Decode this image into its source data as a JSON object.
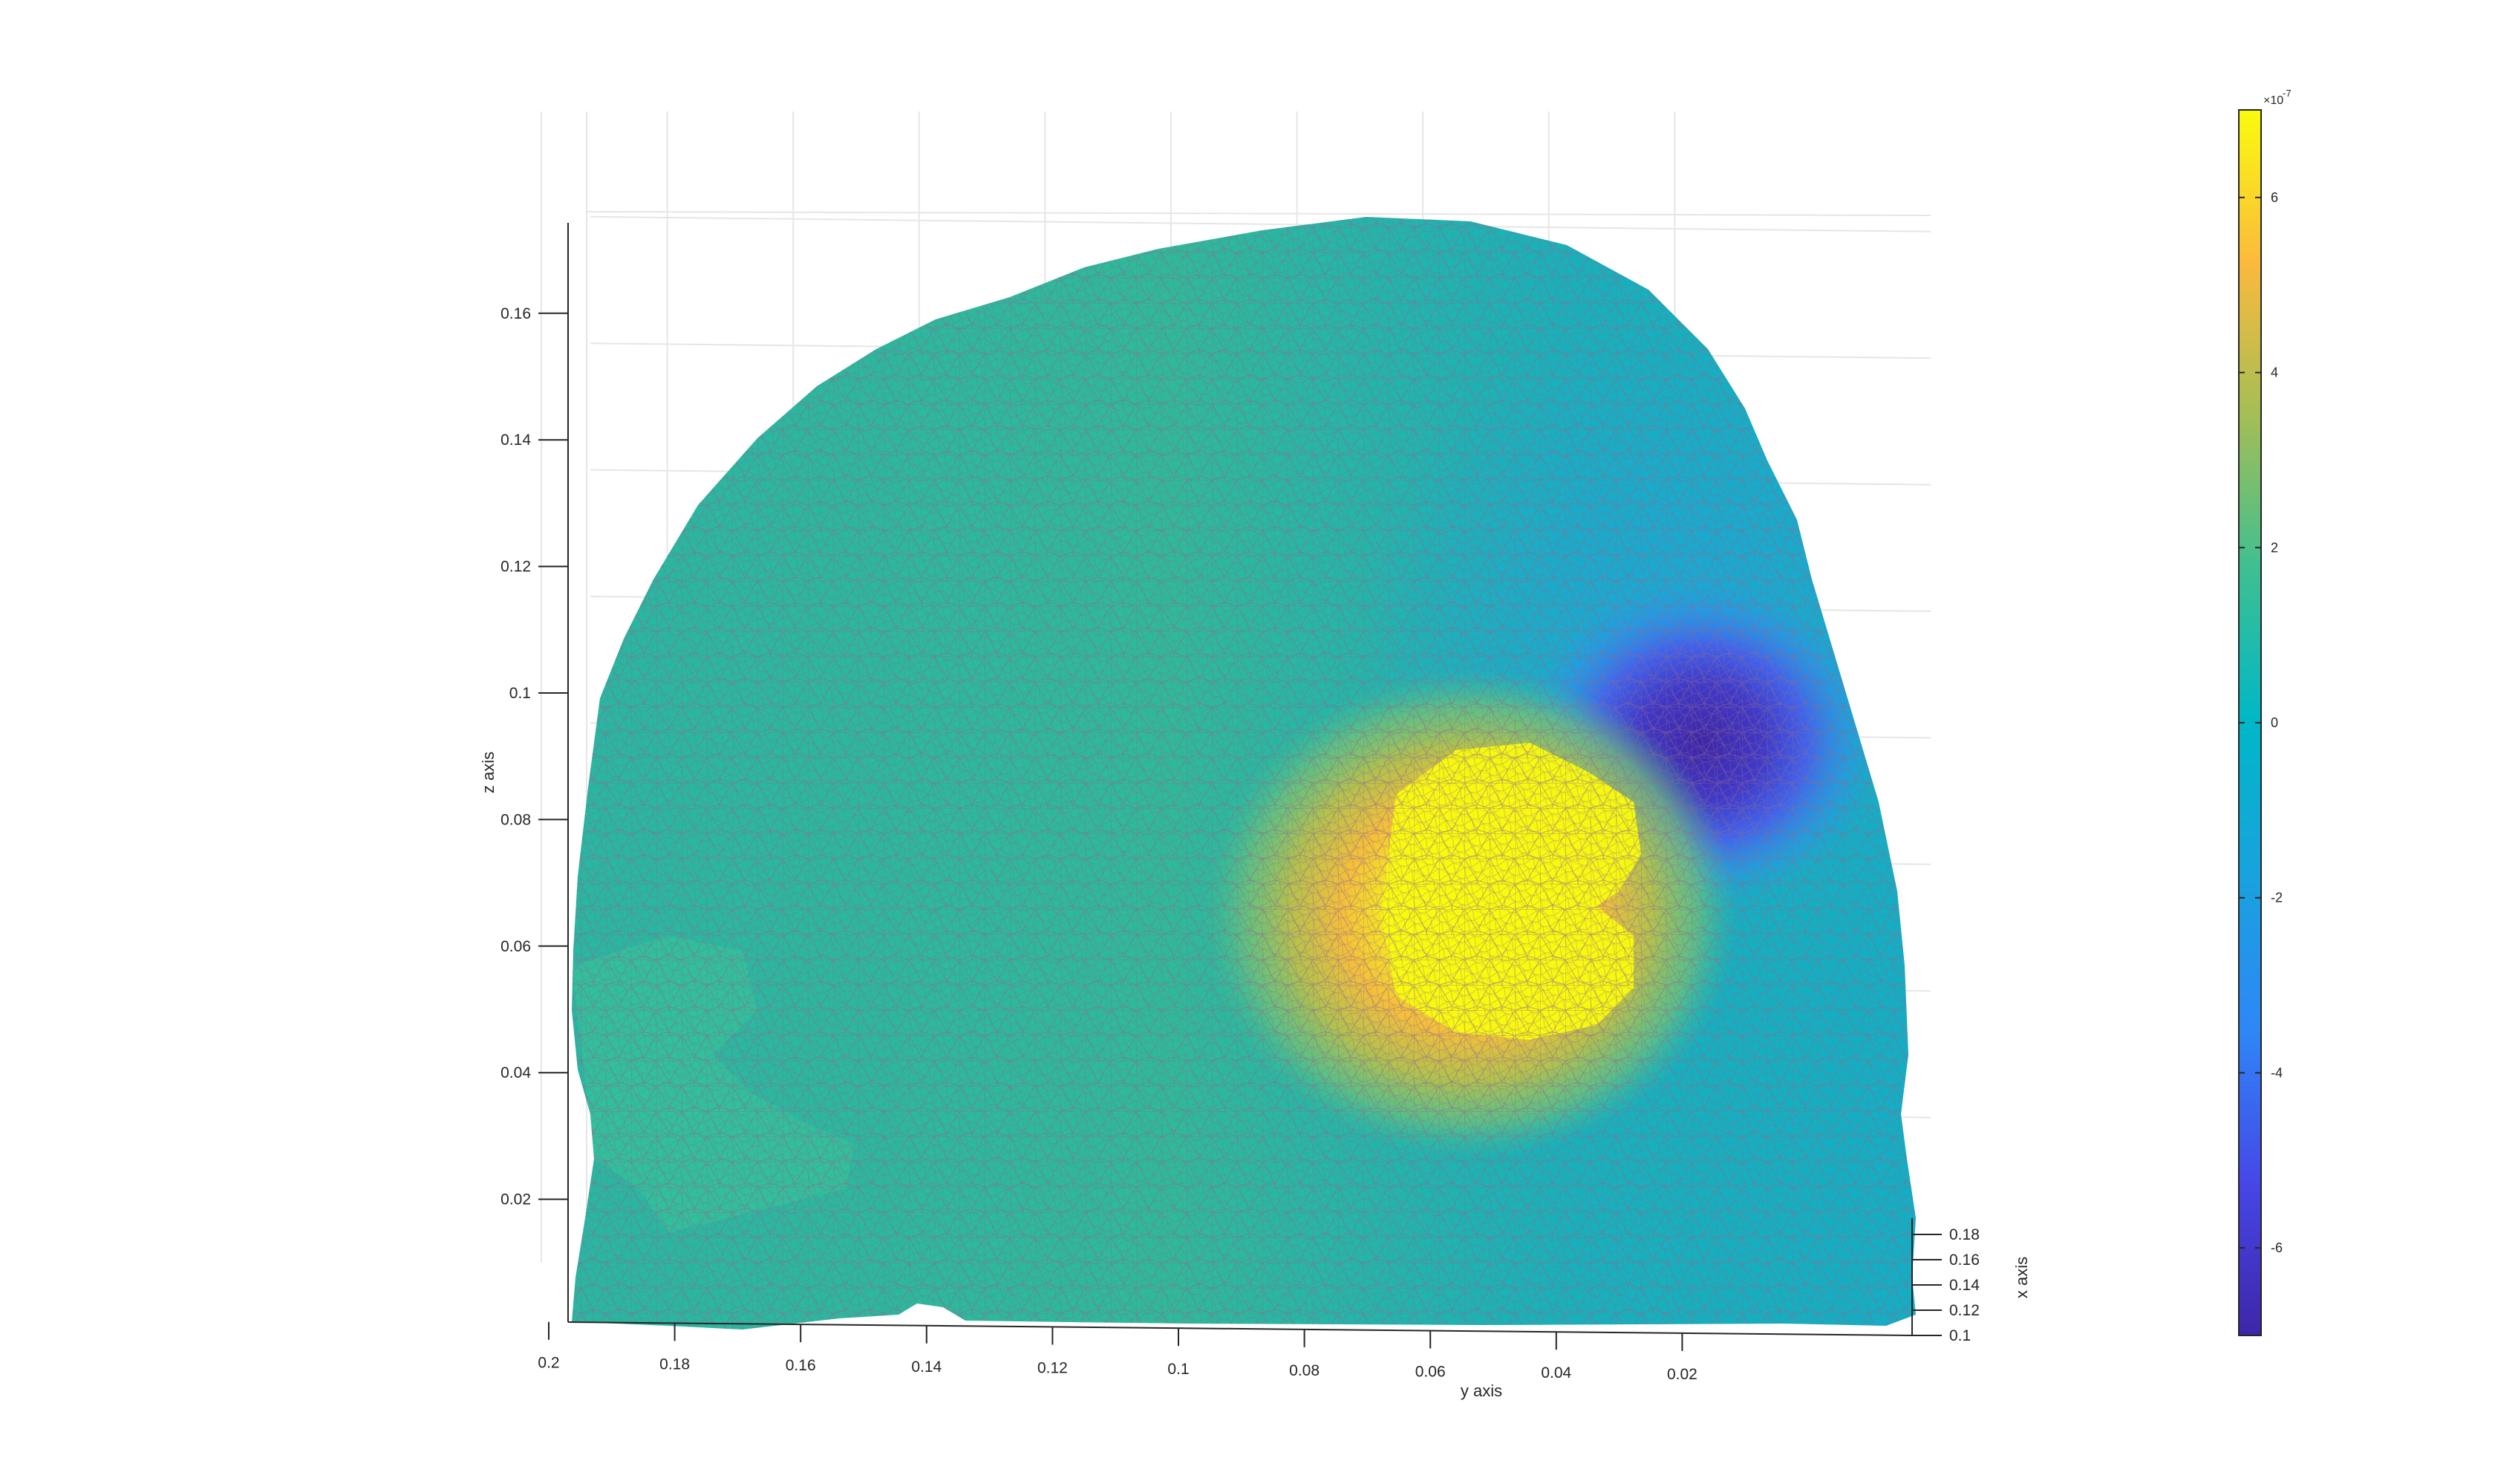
{
  "chart_data": {
    "type": "surface",
    "title": "",
    "xlabel": "x axis",
    "ylabel": "y axis",
    "zlabel": "z axis",
    "view": "3-D mesh viewed from side; y axis decreasing left to right",
    "grid": true,
    "ylim": [
      0.0,
      0.22
    ],
    "zlim": [
      0.0,
      0.175
    ],
    "xlim": [
      0.1,
      0.18
    ],
    "y_ticks": [
      "0.2",
      "0.18",
      "0.16",
      "0.14",
      "0.12",
      "0.1",
      "0.08",
      "0.06",
      "0.04",
      "0.02"
    ],
    "z_ticks": [
      "0.02",
      "0.04",
      "0.06",
      "0.08",
      "0.1",
      "0.12",
      "0.14",
      "0.16"
    ],
    "x_ticks": [
      "0.1",
      "0.12",
      "0.14",
      "0.16",
      "0.18"
    ],
    "colormap": "parula",
    "colorbar": {
      "range": [
        -7,
        7
      ],
      "multiplier": "×10",
      "exponent": "-7",
      "ticks": [
        "-6",
        "-4",
        "-2",
        "0",
        "2",
        "4",
        "6"
      ]
    },
    "features": [
      {
        "name": "positive-peak",
        "value": 6.9,
        "y_center": 0.08,
        "z_center": 0.07
      },
      {
        "name": "negative-trough",
        "value": -6.9,
        "y_center": 0.04,
        "z_center": 0.095
      }
    ],
    "colors": {
      "neutral": "#19b6ab",
      "peak": "#f9fb0e",
      "trough": "#3e26a8",
      "grid": "#e6e6e6",
      "axis": "#262626",
      "mesh": "#8c6b8c"
    }
  }
}
